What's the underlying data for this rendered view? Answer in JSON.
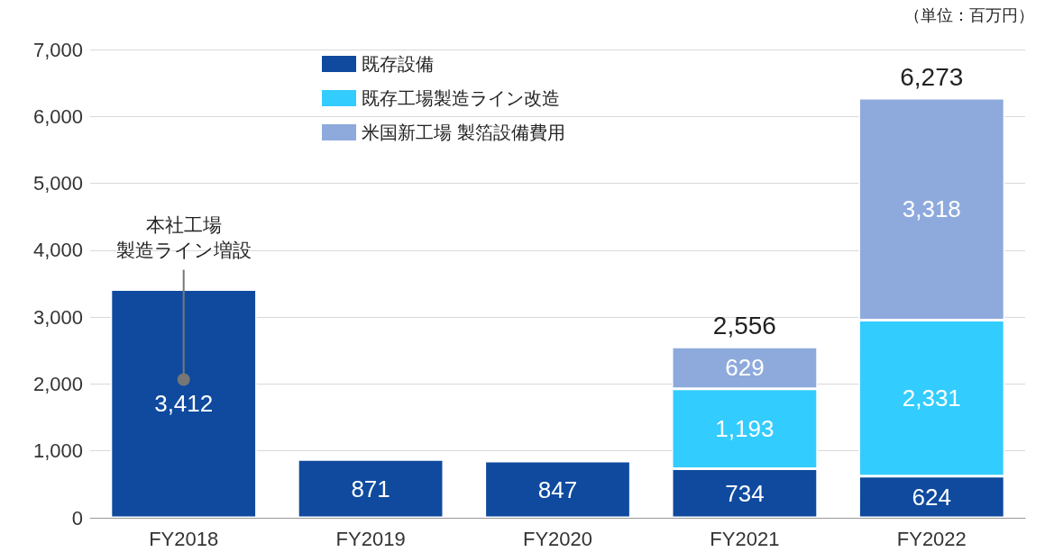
{
  "chart_data": {
    "type": "bar",
    "stacked": true,
    "categories": [
      "FY2018",
      "FY2019",
      "FY2020",
      "FY2021",
      "FY2022"
    ],
    "series": [
      {
        "name": "既存設備",
        "color": "#0f4a9e",
        "values": [
          3412,
          871,
          847,
          734,
          624
        ],
        "value_labels": [
          "3,412",
          "871",
          "847",
          "734",
          "624"
        ]
      },
      {
        "name": "既存工場製造ライン改造",
        "color": "#33ccff",
        "values": [
          null,
          null,
          null,
          1193,
          2331
        ],
        "value_labels": [
          null,
          null,
          null,
          "1,193",
          "2,331"
        ]
      },
      {
        "name": "米国新工場 製箔設備費用",
        "color": "#8eaadc",
        "values": [
          null,
          null,
          null,
          629,
          3318
        ],
        "value_labels": [
          null,
          null,
          null,
          "629",
          "3,318"
        ]
      }
    ],
    "ylim": [
      0,
      7000
    ],
    "yticks": [
      0,
      {
        "value": 1000,
        "label": "1,000"
      },
      {
        "value": 2000,
        "label": "2,000"
      },
      {
        "value": 3000,
        "label": "3,000"
      },
      {
        "value": 4000,
        "label": "4,000"
      },
      {
        "value": 5000,
        "label": "5,000"
      },
      {
        "value": 6000,
        "label": "6,000"
      },
      {
        "value": 7000,
        "label": "7,000"
      }
    ],
    "grid": "y",
    "legend": "top",
    "totals": [
      null,
      null,
      null,
      "2,556",
      "6,273"
    ],
    "annotations": [
      "本社工場",
      "製造ライン増設",
      "（単位：百万円）"
    ]
  }
}
